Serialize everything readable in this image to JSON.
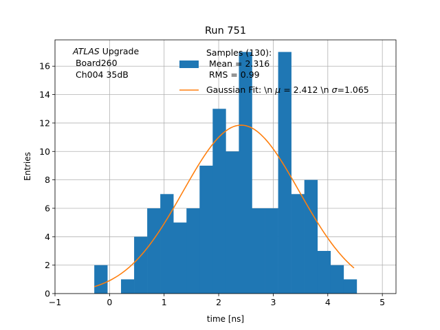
{
  "chart_data": {
    "type": "bar",
    "title": "Run 751",
    "xlabel": "time [ns]",
    "ylabel": "Entries",
    "xlim": [
      -1,
      5.25
    ],
    "ylim": [
      0,
      17.85
    ],
    "xticks": [
      -1,
      0,
      1,
      2,
      3,
      4,
      5
    ],
    "xtick_labels": [
      "−1",
      "0",
      "1",
      "2",
      "3",
      "4",
      "5"
    ],
    "yticks": [
      0,
      2,
      4,
      6,
      8,
      10,
      12,
      14,
      16
    ],
    "grid": true,
    "legend_placement": "top-center",
    "annotation": {
      "italic_part": "ATLAS",
      "rest_part": " Upgrade",
      "line2": " Board260",
      "line3": " Ch004 35dB"
    },
    "histogram": {
      "name": "Samples (130):",
      "legend_lines": [
        "Samples (130):",
        " Mean = 2.316",
        " RMS = 0.99"
      ],
      "color": "#1f77b4",
      "bins": [
        {
          "x0": -0.28,
          "x1": -0.04,
          "y": 2
        },
        {
          "x0": -0.04,
          "x1": 0.21,
          "y": 0
        },
        {
          "x0": 0.21,
          "x1": 0.45,
          "y": 1
        },
        {
          "x0": 0.45,
          "x1": 0.69,
          "y": 4
        },
        {
          "x0": 0.69,
          "x1": 0.93,
          "y": 6
        },
        {
          "x0": 0.93,
          "x1": 1.17,
          "y": 7
        },
        {
          "x0": 1.17,
          "x1": 1.41,
          "y": 5
        },
        {
          "x0": 1.41,
          "x1": 1.65,
          "y": 6
        },
        {
          "x0": 1.65,
          "x1": 1.89,
          "y": 9
        },
        {
          "x0": 1.89,
          "x1": 2.13,
          "y": 13
        },
        {
          "x0": 2.13,
          "x1": 2.37,
          "y": 10
        },
        {
          "x0": 2.37,
          "x1": 2.61,
          "y": 17
        },
        {
          "x0": 2.61,
          "x1": 2.85,
          "y": 6
        },
        {
          "x0": 2.85,
          "x1": 3.09,
          "y": 6
        },
        {
          "x0": 3.09,
          "x1": 3.33,
          "y": 17
        },
        {
          "x0": 3.33,
          "x1": 3.57,
          "y": 7
        },
        {
          "x0": 3.57,
          "x1": 3.81,
          "y": 8
        },
        {
          "x0": 3.81,
          "x1": 4.05,
          "y": 3
        },
        {
          "x0": 4.05,
          "x1": 4.29,
          "y": 2
        },
        {
          "x0": 4.29,
          "x1": 4.53,
          "y": 1
        }
      ]
    },
    "fit": {
      "name": "Gaussian Fit: \\n μ = 2.412 \\n σ=1.065",
      "legend_prefix": "Gaussian Fit: \\n ",
      "legend_mu": "μ",
      "legend_mid": " = 2.412 \\n ",
      "legend_sigma": "σ",
      "legend_suffix": "=1.065",
      "color": "#ff7f0e",
      "mu": 2.412,
      "sigma": 1.065,
      "amplitude": 11.85,
      "x_range": [
        -0.28,
        4.48
      ]
    }
  }
}
